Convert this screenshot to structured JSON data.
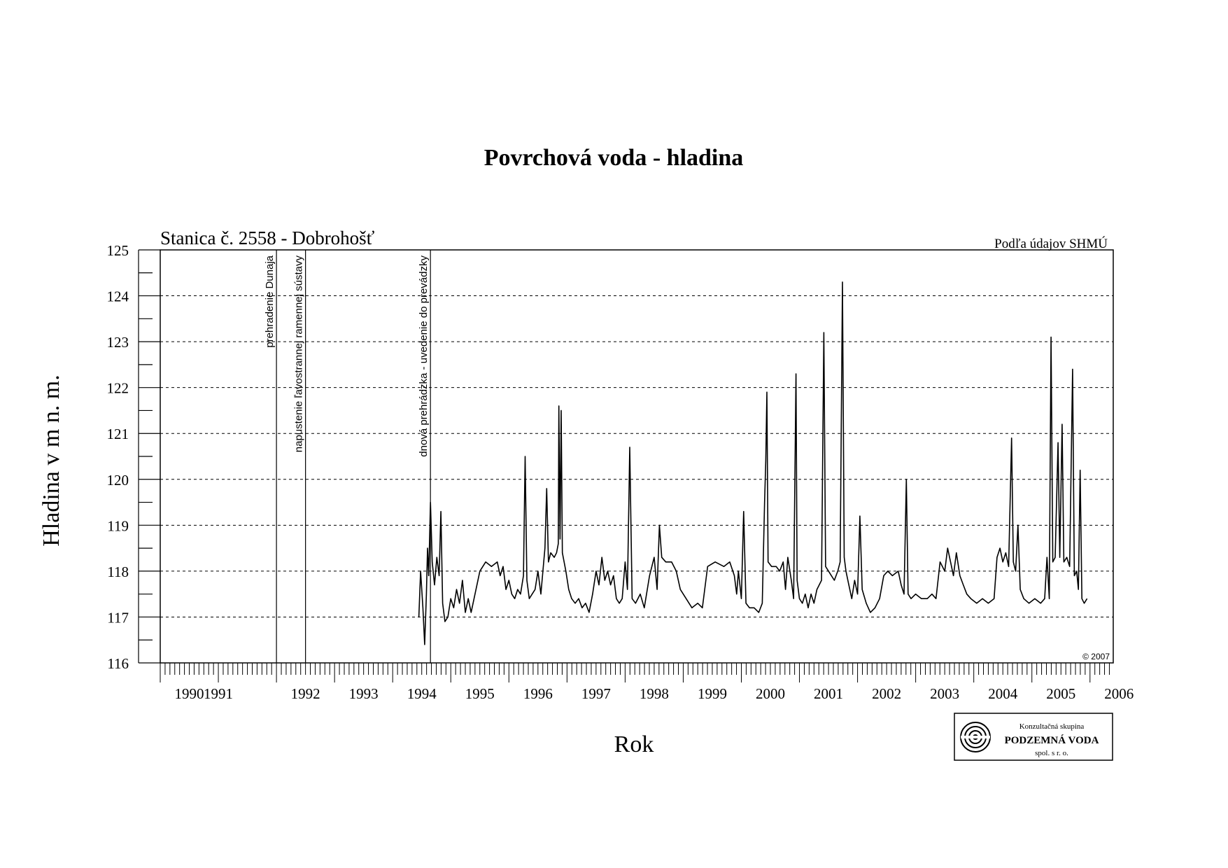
{
  "chart_data": {
    "type": "line",
    "title": "Povrchová voda - hladina",
    "subtitle": "Stanica č. 2558 - Dobrohošť",
    "source_note": "Podľa údajov SHMÚ",
    "copyright": "© 2007",
    "xlabel": "Rok",
    "ylabel": "Hladina v m n. m.",
    "xlim": [
      1990.0,
      2006.4
    ],
    "ylim": [
      116,
      125
    ],
    "yticks": [
      "116",
      "117",
      "118",
      "119",
      "120",
      "121",
      "122",
      "123",
      "124",
      "125"
    ],
    "xticks": [
      {
        "label": "1990",
        "x": 1990.5
      },
      {
        "label": "1991",
        "x": 1991.0
      },
      {
        "label": "1992",
        "x": 1992.5
      },
      {
        "label": "1993",
        "x": 1993.5
      },
      {
        "label": "1994",
        "x": 1994.5
      },
      {
        "label": "1995",
        "x": 1995.5
      },
      {
        "label": "1996",
        "x": 1996.5
      },
      {
        "label": "1997",
        "x": 1997.5
      },
      {
        "label": "1998",
        "x": 1998.5
      },
      {
        "label": "1999",
        "x": 1999.5
      },
      {
        "label": "2000",
        "x": 2000.5
      },
      {
        "label": "2001",
        "x": 2001.5
      },
      {
        "label": "2002",
        "x": 2002.5
      },
      {
        "label": "2003",
        "x": 2003.5
      },
      {
        "label": "2004",
        "x": 2004.5
      },
      {
        "label": "2005",
        "x": 2005.5
      },
      {
        "label": "2006",
        "x": 2006.5
      }
    ],
    "grid": "horizontal-dashed",
    "events": [
      {
        "x": 1992.0,
        "label": "prehradenie Dunaja"
      },
      {
        "x": 1992.5,
        "label": "napustenie ľavostrannej ramennej sústavy"
      },
      {
        "x": 1994.65,
        "label": "dnová prehrádzka - uvedenie do prevádzky"
      }
    ],
    "series": [
      {
        "points": [
          [
            1994.45,
            117.0
          ],
          [
            1994.48,
            118.0
          ],
          [
            1994.52,
            117.2
          ],
          [
            1994.55,
            116.4
          ],
          [
            1994.58,
            117.5
          ],
          [
            1994.6,
            118.5
          ],
          [
            1994.62,
            117.9
          ],
          [
            1994.65,
            119.5
          ],
          [
            1994.68,
            118.2
          ],
          [
            1994.72,
            117.7
          ],
          [
            1994.76,
            118.3
          ],
          [
            1994.8,
            117.9
          ],
          [
            1994.83,
            119.3
          ],
          [
            1994.86,
            117.3
          ],
          [
            1994.9,
            116.9
          ],
          [
            1994.95,
            117.0
          ],
          [
            1995.0,
            117.4
          ],
          [
            1995.05,
            117.2
          ],
          [
            1995.1,
            117.6
          ],
          [
            1995.15,
            117.3
          ],
          [
            1995.2,
            117.8
          ],
          [
            1995.25,
            117.1
          ],
          [
            1995.3,
            117.4
          ],
          [
            1995.35,
            117.1
          ],
          [
            1995.5,
            118.0
          ],
          [
            1995.6,
            118.2
          ],
          [
            1995.7,
            118.1
          ],
          [
            1995.8,
            118.2
          ],
          [
            1995.85,
            117.9
          ],
          [
            1995.9,
            118.1
          ],
          [
            1995.95,
            117.6
          ],
          [
            1996.0,
            117.8
          ],
          [
            1996.05,
            117.5
          ],
          [
            1996.1,
            117.4
          ],
          [
            1996.15,
            117.6
          ],
          [
            1996.2,
            117.5
          ],
          [
            1996.25,
            117.9
          ],
          [
            1996.28,
            120.5
          ],
          [
            1996.31,
            117.8
          ],
          [
            1996.35,
            117.4
          ],
          [
            1996.45,
            117.6
          ],
          [
            1996.5,
            118.0
          ],
          [
            1996.55,
            117.5
          ],
          [
            1996.62,
            118.5
          ],
          [
            1996.65,
            119.8
          ],
          [
            1996.68,
            118.2
          ],
          [
            1996.72,
            118.4
          ],
          [
            1996.78,
            118.3
          ],
          [
            1996.82,
            118.4
          ],
          [
            1996.85,
            118.6
          ],
          [
            1996.86,
            121.6
          ],
          [
            1996.88,
            118.7
          ],
          [
            1996.9,
            121.5
          ],
          [
            1996.92,
            118.4
          ],
          [
            1996.98,
            118.0
          ],
          [
            1997.03,
            117.6
          ],
          [
            1997.08,
            117.4
          ],
          [
            1997.14,
            117.3
          ],
          [
            1997.2,
            117.4
          ],
          [
            1997.26,
            117.2
          ],
          [
            1997.32,
            117.3
          ],
          [
            1997.38,
            117.1
          ],
          [
            1997.44,
            117.5
          ],
          [
            1997.5,
            118.0
          ],
          [
            1997.55,
            117.7
          ],
          [
            1997.6,
            118.3
          ],
          [
            1997.65,
            117.8
          ],
          [
            1997.7,
            118.0
          ],
          [
            1997.75,
            117.7
          ],
          [
            1997.8,
            117.9
          ],
          [
            1997.85,
            117.4
          ],
          [
            1997.9,
            117.3
          ],
          [
            1997.95,
            117.4
          ],
          [
            1998.0,
            118.2
          ],
          [
            1998.04,
            117.6
          ],
          [
            1998.08,
            120.7
          ],
          [
            1998.12,
            117.4
          ],
          [
            1998.18,
            117.3
          ],
          [
            1998.26,
            117.5
          ],
          [
            1998.33,
            117.2
          ],
          [
            1998.42,
            117.9
          ],
          [
            1998.5,
            118.3
          ],
          [
            1998.55,
            117.6
          ],
          [
            1998.59,
            119.0
          ],
          [
            1998.63,
            118.3
          ],
          [
            1998.7,
            118.2
          ],
          [
            1998.8,
            118.2
          ],
          [
            1998.88,
            118.0
          ],
          [
            1998.95,
            117.6
          ],
          [
            1999.05,
            117.4
          ],
          [
            1999.15,
            117.2
          ],
          [
            1999.25,
            117.3
          ],
          [
            1999.33,
            117.2
          ],
          [
            1999.42,
            118.1
          ],
          [
            1999.55,
            118.2
          ],
          [
            1999.7,
            118.1
          ],
          [
            1999.8,
            118.2
          ],
          [
            1999.88,
            117.9
          ],
          [
            1999.92,
            117.5
          ],
          [
            1999.95,
            118.0
          ],
          [
            2000.0,
            117.4
          ],
          [
            2000.04,
            119.3
          ],
          [
            2000.08,
            117.3
          ],
          [
            2000.14,
            117.2
          ],
          [
            2000.22,
            117.2
          ],
          [
            2000.3,
            117.1
          ],
          [
            2000.36,
            117.3
          ],
          [
            2000.4,
            119.5
          ],
          [
            2000.42,
            120.4
          ],
          [
            2000.44,
            121.9
          ],
          [
            2000.46,
            118.2
          ],
          [
            2000.52,
            118.1
          ],
          [
            2000.6,
            118.1
          ],
          [
            2000.66,
            118.0
          ],
          [
            2000.72,
            118.2
          ],
          [
            2000.76,
            117.6
          ],
          [
            2000.8,
            118.3
          ],
          [
            2000.86,
            117.8
          ],
          [
            2000.9,
            117.4
          ],
          [
            2000.94,
            122.3
          ],
          [
            2000.96,
            117.8
          ],
          [
            2001.0,
            117.4
          ],
          [
            2001.05,
            117.3
          ],
          [
            2001.1,
            117.5
          ],
          [
            2001.15,
            117.2
          ],
          [
            2001.2,
            117.5
          ],
          [
            2001.25,
            117.3
          ],
          [
            2001.3,
            117.6
          ],
          [
            2001.38,
            117.8
          ],
          [
            2001.42,
            123.2
          ],
          [
            2001.45,
            118.1
          ],
          [
            2001.5,
            118.0
          ],
          [
            2001.55,
            117.9
          ],
          [
            2001.6,
            117.8
          ],
          [
            2001.66,
            118.0
          ],
          [
            2001.7,
            118.2
          ],
          [
            2001.74,
            124.3
          ],
          [
            2001.77,
            118.3
          ],
          [
            2001.8,
            118.0
          ],
          [
            2001.85,
            117.7
          ],
          [
            2001.9,
            117.4
          ],
          [
            2001.95,
            117.8
          ],
          [
            2002.0,
            117.5
          ],
          [
            2002.04,
            119.2
          ],
          [
            2002.08,
            117.6
          ],
          [
            2002.15,
            117.3
          ],
          [
            2002.22,
            117.1
          ],
          [
            2002.3,
            117.2
          ],
          [
            2002.38,
            117.4
          ],
          [
            2002.45,
            117.9
          ],
          [
            2002.52,
            118.0
          ],
          [
            2002.6,
            117.9
          ],
          [
            2002.7,
            118.0
          ],
          [
            2002.75,
            117.7
          ],
          [
            2002.8,
            117.5
          ],
          [
            2002.84,
            120.0
          ],
          [
            2002.87,
            117.5
          ],
          [
            2002.92,
            117.4
          ],
          [
            2003.0,
            117.5
          ],
          [
            2003.1,
            117.4
          ],
          [
            2003.2,
            117.4
          ],
          [
            2003.28,
            117.5
          ],
          [
            2003.35,
            117.4
          ],
          [
            2003.42,
            118.2
          ],
          [
            2003.5,
            118.0
          ],
          [
            2003.55,
            118.5
          ],
          [
            2003.6,
            118.2
          ],
          [
            2003.65,
            117.9
          ],
          [
            2003.7,
            118.4
          ],
          [
            2003.76,
            117.9
          ],
          [
            2003.82,
            117.7
          ],
          [
            2003.88,
            117.5
          ],
          [
            2003.95,
            117.4
          ],
          [
            2004.05,
            117.3
          ],
          [
            2004.15,
            117.4
          ],
          [
            2004.25,
            117.3
          ],
          [
            2004.35,
            117.4
          ],
          [
            2004.4,
            118.3
          ],
          [
            2004.45,
            118.5
          ],
          [
            2004.5,
            118.2
          ],
          [
            2004.55,
            118.4
          ],
          [
            2004.6,
            118.1
          ],
          [
            2004.65,
            120.9
          ],
          [
            2004.68,
            118.2
          ],
          [
            2004.72,
            118.0
          ],
          [
            2004.76,
            119.0
          ],
          [
            2004.8,
            117.6
          ],
          [
            2004.86,
            117.4
          ],
          [
            2004.95,
            117.3
          ],
          [
            2005.05,
            117.4
          ],
          [
            2005.15,
            117.3
          ],
          [
            2005.22,
            117.4
          ],
          [
            2005.26,
            118.3
          ],
          [
            2005.3,
            117.4
          ],
          [
            2005.33,
            123.1
          ],
          [
            2005.36,
            118.2
          ],
          [
            2005.4,
            118.3
          ],
          [
            2005.45,
            120.8
          ],
          [
            2005.48,
            118.3
          ],
          [
            2005.52,
            121.2
          ],
          [
            2005.55,
            118.2
          ],
          [
            2005.6,
            118.3
          ],
          [
            2005.65,
            118.1
          ],
          [
            2005.7,
            122.4
          ],
          [
            2005.73,
            117.9
          ],
          [
            2005.77,
            118.0
          ],
          [
            2005.8,
            117.6
          ],
          [
            2005.83,
            120.2
          ],
          [
            2005.86,
            117.4
          ],
          [
            2005.9,
            117.3
          ],
          [
            2005.95,
            117.4
          ]
        ]
      }
    ]
  },
  "logo": {
    "line1": "Konzultačná skupina",
    "line2": "PODZEMNÁ VODA",
    "line3": "spol. s r. o."
  }
}
